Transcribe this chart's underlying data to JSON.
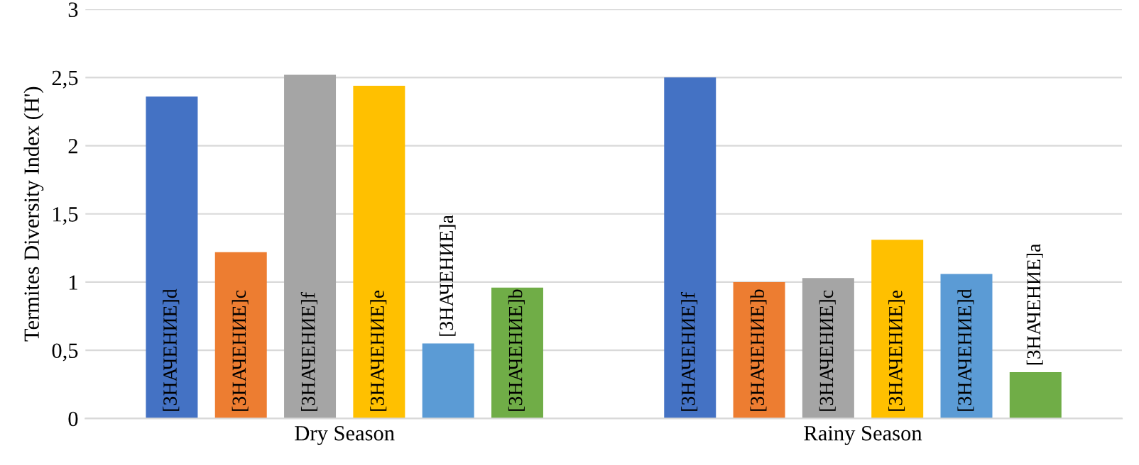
{
  "chart_data": {
    "type": "bar",
    "ylabel": "Termites Diversity Index (H')",
    "categories": [
      "Dry Season",
      "Rainy Season"
    ],
    "series": [
      {
        "color": "#4472c4",
        "values": [
          2.36,
          2.5
        ],
        "value_labels": [
          "[ЗНАЧЕНИЕ]d",
          "[ЗНАЧЕНИЕ]f"
        ]
      },
      {
        "color": "#ed7d31",
        "values": [
          1.22,
          1.0
        ],
        "value_labels": [
          "[ЗНАЧЕНИЕ]c",
          "[ЗНАЧЕНИЕ]b"
        ]
      },
      {
        "color": "#a5a5a5",
        "values": [
          2.52,
          1.03
        ],
        "value_labels": [
          "[ЗНАЧЕНИЕ]f",
          "[ЗНАЧЕНИЕ]c"
        ]
      },
      {
        "color": "#ffc000",
        "values": [
          2.44,
          1.31
        ],
        "value_labels": [
          "[ЗНАЧЕНИЕ]e",
          "[ЗНАЧЕНИЕ]e"
        ]
      },
      {
        "color": "#5b9bd5",
        "values": [
          0.55,
          1.06
        ],
        "value_labels": [
          "[ЗНАЧЕНИЕ]a",
          "[ЗНАЧЕНИЕ]d"
        ]
      },
      {
        "color": "#70ad47",
        "values": [
          0.96,
          0.34
        ],
        "value_labels": [
          "[ЗНАЧЕНИЕ]b",
          "[ЗНАЧЕНИЕ]a"
        ]
      }
    ],
    "ylim": [
      0,
      3
    ],
    "yticks": [
      0,
      {
        "value": 0.5,
        "label": "0,5"
      },
      1,
      {
        "value": 1.5,
        "label": "1,5"
      },
      2,
      {
        "value": 2.5,
        "label": "2,5"
      },
      3
    ],
    "grid": "y",
    "legend": false
  }
}
